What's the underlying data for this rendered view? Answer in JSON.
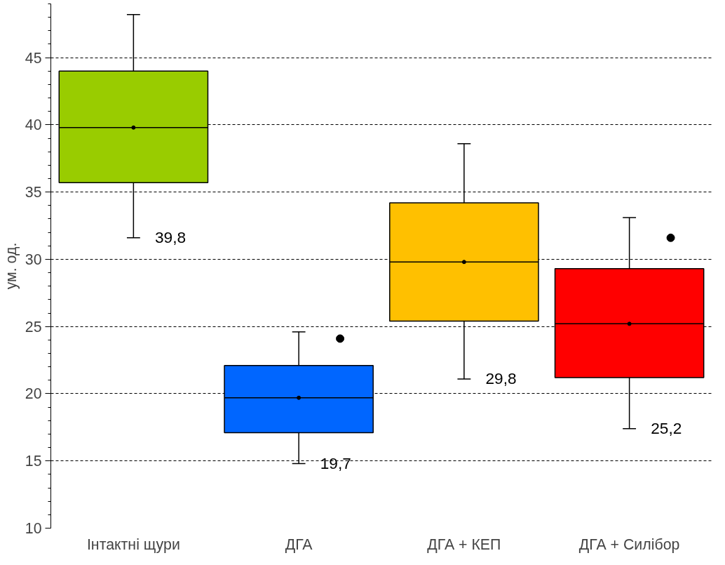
{
  "chart_data": {
    "type": "box",
    "ylabel": "ум. од.",
    "categories": [
      "Інтактні щури",
      "ДГА",
      "ДГА + КЕП",
      "ДГА + Силібор"
    ],
    "colors": [
      "#99cc00",
      "#0066ff",
      "#ffc000",
      "#ff0000"
    ],
    "boxes": [
      {
        "low": 31.6,
        "q1": 35.7,
        "median": 39.8,
        "q3": 44.0,
        "high": 48.2,
        "mean": 39.8
      },
      {
        "low": 14.8,
        "q1": 17.1,
        "median": 19.7,
        "q3": 22.1,
        "high": 24.6,
        "mean": 19.7,
        "outliers": [
          24.1
        ]
      },
      {
        "low": 21.1,
        "q1": 25.4,
        "median": 29.8,
        "q3": 34.2,
        "high": 38.6,
        "mean": 29.8
      },
      {
        "low": 17.4,
        "q1": 21.2,
        "median": 25.2,
        "q3": 29.3,
        "high": 33.1,
        "mean": 25.2,
        "outliers": [
          31.6
        ]
      }
    ],
    "value_labels": [
      "39,8",
      "19,7",
      "29,8",
      "25,2"
    ],
    "ylim": [
      10,
      49
    ],
    "yticks": [
      10,
      15,
      20,
      25,
      30,
      35,
      40,
      45
    ],
    "grid": "y"
  }
}
